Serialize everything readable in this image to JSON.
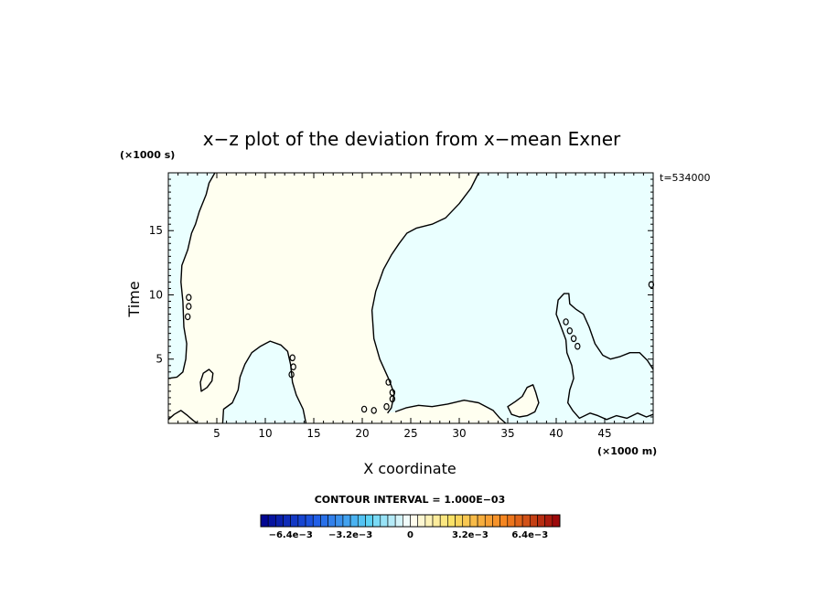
{
  "chart_data": {
    "type": "heatmap",
    "title": "x−z plot of the deviation from x−mean Exner",
    "xlabel": "X coordinate",
    "ylabel": "Time",
    "x_unit": "(×1000 m)",
    "y_unit": "(×1000 s)",
    "time_label": "t=534000",
    "xlim": [
      0,
      50
    ],
    "ylim": [
      0,
      19.5
    ],
    "x_ticks": [
      5,
      10,
      15,
      20,
      25,
      30,
      35,
      40,
      45
    ],
    "y_ticks": [
      5,
      10,
      15
    ],
    "contour_interval_label": "CONTOUR INTERVAL = 1.000E−03",
    "colorbar": {
      "range": [
        -0.008,
        0.008
      ],
      "n_bins": 40,
      "tick_values": [
        -0.0064,
        -0.0032,
        0,
        0.0032,
        0.0064
      ],
      "tick_labels": [
        "−6.4e−3",
        "−3.2e−3",
        "0",
        "3.2e−3",
        "6.4e−3"
      ]
    },
    "regions": [
      {
        "sign": "positive",
        "color": "#fffff0"
      },
      {
        "sign": "negative",
        "color": "#eaffff"
      }
    ],
    "zero_contours": [
      {
        "closed": false,
        "points": [
          [
            0,
            3.5
          ],
          [
            0.9,
            3.6
          ],
          [
            1.5,
            4.0
          ],
          [
            1.8,
            5.0
          ],
          [
            1.9,
            6.2
          ],
          [
            1.6,
            7.5
          ],
          [
            1.5,
            9.5
          ],
          [
            1.3,
            11.0
          ],
          [
            1.4,
            12.3
          ],
          [
            2.0,
            13.5
          ],
          [
            2.4,
            14.8
          ],
          [
            2.8,
            15.5
          ],
          [
            3.2,
            16.5
          ],
          [
            3.9,
            17.8
          ],
          [
            4.2,
            18.7
          ],
          [
            4.8,
            19.5
          ]
        ]
      },
      {
        "closed": false,
        "points": [
          [
            32.0,
            19.5
          ],
          [
            31.2,
            18.3
          ],
          [
            30.0,
            17.1
          ],
          [
            28.6,
            16.0
          ],
          [
            27.2,
            15.5
          ],
          [
            25.6,
            15.2
          ],
          [
            24.6,
            14.8
          ],
          [
            23.8,
            14.0
          ],
          [
            23.0,
            13.1
          ],
          [
            22.2,
            12.0
          ],
          [
            21.4,
            10.3
          ],
          [
            21.0,
            8.8
          ],
          [
            21.2,
            6.6
          ],
          [
            21.8,
            5.0
          ],
          [
            22.7,
            3.5
          ],
          [
            23.3,
            2.3
          ],
          [
            23.0,
            1.2
          ],
          [
            22.6,
            0.8
          ]
        ]
      },
      {
        "closed": false,
        "points": [
          [
            5.6,
            0
          ],
          [
            5.7,
            1.1
          ],
          [
            6.6,
            1.6
          ],
          [
            7.2,
            2.6
          ],
          [
            7.4,
            3.6
          ],
          [
            7.9,
            4.6
          ],
          [
            8.6,
            5.5
          ],
          [
            9.5,
            6.0
          ],
          [
            10.0,
            6.2
          ],
          [
            10.5,
            6.4
          ],
          [
            11.6,
            6.1
          ],
          [
            12.3,
            5.6
          ],
          [
            12.6,
            4.6
          ],
          [
            12.8,
            3.2
          ],
          [
            13.2,
            2.2
          ],
          [
            13.9,
            1.1
          ],
          [
            14.2,
            0
          ]
        ]
      },
      {
        "closed": false,
        "points": [
          [
            50,
            4.2
          ],
          [
            49.4,
            4.9
          ],
          [
            48.6,
            5.5
          ],
          [
            47.6,
            5.5
          ],
          [
            46.6,
            5.2
          ],
          [
            45.6,
            5.0
          ],
          [
            44.8,
            5.3
          ],
          [
            44.0,
            6.2
          ],
          [
            43.4,
            7.5
          ],
          [
            42.8,
            8.5
          ],
          [
            42.0,
            8.9
          ],
          [
            41.4,
            9.3
          ],
          [
            41.3,
            10.1
          ],
          [
            40.8,
            10.1
          ],
          [
            40.2,
            9.6
          ],
          [
            40.0,
            8.5
          ],
          [
            40.6,
            7.3
          ],
          [
            41.0,
            6.5
          ],
          [
            41.1,
            5.5
          ],
          [
            41.6,
            4.5
          ],
          [
            41.8,
            3.5
          ],
          [
            41.4,
            2.6
          ],
          [
            41.2,
            1.6
          ],
          [
            41.7,
            1.0
          ],
          [
            42.4,
            0.4
          ],
          [
            43.5,
            0.8
          ],
          [
            44.3,
            0.6
          ],
          [
            45.2,
            0.3
          ],
          [
            46.2,
            0.6
          ],
          [
            47.3,
            0.4
          ],
          [
            48.4,
            0.8
          ],
          [
            49.3,
            0.5
          ],
          [
            50,
            0.7
          ]
        ]
      },
      {
        "closed": true,
        "points": [
          [
            35.0,
            1.3
          ],
          [
            35.8,
            1.7
          ],
          [
            36.5,
            2.1
          ],
          [
            37.0,
            2.8
          ],
          [
            37.6,
            3.0
          ],
          [
            37.9,
            2.4
          ],
          [
            38.2,
            1.6
          ],
          [
            37.8,
            0.9
          ],
          [
            37.0,
            0.6
          ],
          [
            36.2,
            0.5
          ],
          [
            35.4,
            0.7
          ]
        ]
      },
      {
        "closed": true,
        "points": [
          [
            3.4,
            2.5
          ],
          [
            4.0,
            2.8
          ],
          [
            4.5,
            3.3
          ],
          [
            4.6,
            3.9
          ],
          [
            4.2,
            4.2
          ],
          [
            3.6,
            3.9
          ],
          [
            3.3,
            3.2
          ]
        ]
      },
      {
        "closed": false,
        "points": [
          [
            0,
            0.3
          ],
          [
            0.6,
            0.7
          ],
          [
            1.3,
            1.0
          ],
          [
            2.0,
            0.6
          ],
          [
            2.6,
            0.2
          ],
          [
            3.0,
            0
          ]
        ]
      },
      {
        "closed": false,
        "points": [
          [
            23.4,
            0.9
          ],
          [
            24.5,
            1.2
          ],
          [
            25.8,
            1.4
          ],
          [
            27.2,
            1.3
          ],
          [
            28.8,
            1.5
          ],
          [
            30.5,
            1.8
          ],
          [
            32.0,
            1.6
          ],
          [
            33.5,
            1.0
          ],
          [
            34.2,
            0.4
          ],
          [
            34.8,
            0
          ]
        ]
      }
    ],
    "zero_markers": [
      [
        2.1,
        9.8
      ],
      [
        2.1,
        9.1
      ],
      [
        2.0,
        8.3
      ],
      [
        12.8,
        5.1
      ],
      [
        12.9,
        4.4
      ],
      [
        12.7,
        3.8
      ],
      [
        22.7,
        3.2
      ],
      [
        23.1,
        2.4
      ],
      [
        23.1,
        1.9
      ],
      [
        22.5,
        1.3
      ],
      [
        20.2,
        1.1
      ],
      [
        21.2,
        1.0
      ],
      [
        41.0,
        7.9
      ],
      [
        41.4,
        7.2
      ],
      [
        41.8,
        6.6
      ],
      [
        42.2,
        6.0
      ],
      [
        49.8,
        10.8
      ]
    ]
  }
}
